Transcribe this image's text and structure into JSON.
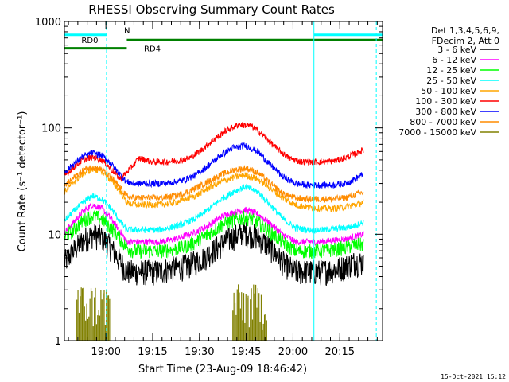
{
  "chart_data": {
    "type": "line",
    "title": "RHESSI Observing Summary Count Rates",
    "xlabel": "Start Time (23-Aug-09 18:46:42)",
    "ylabel": "Count Rate (s⁻¹ detector⁻¹)",
    "footer_timestamp": "15-Oct-2021 15:12",
    "x_unit": "minutes after 18:46:42",
    "xlim": [
      0,
      102
    ],
    "ylim": [
      1,
      1000
    ],
    "yscale": "log",
    "x_ticks": [
      {
        "value": 13.3,
        "label": "19:00"
      },
      {
        "value": 28.3,
        "label": "19:15"
      },
      {
        "value": 43.3,
        "label": "19:30"
      },
      {
        "value": 58.3,
        "label": "19:45"
      },
      {
        "value": 73.3,
        "label": "20:00"
      },
      {
        "value": 88.3,
        "label": "20:15"
      }
    ],
    "y_ticks": [
      {
        "value": 1,
        "label": "1"
      },
      {
        "value": 10,
        "label": "10"
      },
      {
        "value": 100,
        "label": "100"
      },
      {
        "value": 1000,
        "label": "1000"
      }
    ],
    "legend_header": [
      "Det 1,3,4,5,6,9,",
      "FDecim 2, Att 0"
    ],
    "legend_position": "right",
    "series": [
      {
        "name": "3 - 6 keV",
        "color": "#000000",
        "points": [
          [
            0,
            5.5
          ],
          [
            3,
            7
          ],
          [
            6,
            9
          ],
          [
            9,
            10
          ],
          [
            12,
            9.5
          ],
          [
            15,
            7.5
          ],
          [
            18,
            5.5
          ],
          [
            20,
            4.5
          ],
          [
            22,
            4.5
          ],
          [
            26,
            4.5
          ],
          [
            30,
            4.5
          ],
          [
            34,
            4.8
          ],
          [
            38,
            5
          ],
          [
            42,
            5.5
          ],
          [
            46,
            6.5
          ],
          [
            50,
            8
          ],
          [
            54,
            9.5
          ],
          [
            58,
            10.5
          ],
          [
            62,
            9.5
          ],
          [
            66,
            7.5
          ],
          [
            70,
            5.5
          ],
          [
            74,
            4.5
          ],
          [
            78,
            4.5
          ],
          [
            82,
            4.5
          ],
          [
            86,
            4.7
          ],
          [
            90,
            5
          ],
          [
            93,
            5.5
          ],
          [
            96,
            5.5
          ]
        ]
      },
      {
        "name": "6 - 12 keV",
        "color": "#ff00ff",
        "points": [
          [
            0,
            10.5
          ],
          [
            3,
            13
          ],
          [
            6,
            16.5
          ],
          [
            9,
            19
          ],
          [
            12,
            17.5
          ],
          [
            15,
            14
          ],
          [
            18,
            10.5
          ],
          [
            20,
            8.5
          ],
          [
            22,
            8.5
          ],
          [
            26,
            8.5
          ],
          [
            30,
            8.5
          ],
          [
            34,
            8.8
          ],
          [
            38,
            9.5
          ],
          [
            42,
            10.5
          ],
          [
            46,
            12
          ],
          [
            50,
            14.5
          ],
          [
            54,
            16
          ],
          [
            58,
            17
          ],
          [
            62,
            15.5
          ],
          [
            66,
            12.5
          ],
          [
            70,
            10
          ],
          [
            74,
            8.5
          ],
          [
            78,
            8.5
          ],
          [
            82,
            8.5
          ],
          [
            86,
            8.8
          ],
          [
            90,
            9
          ],
          [
            93,
            9.5
          ],
          [
            96,
            10
          ]
        ]
      },
      {
        "name": "12 - 25 keV",
        "color": "#00ff00",
        "points": [
          [
            0,
            9.5
          ],
          [
            3,
            11
          ],
          [
            6,
            13.5
          ],
          [
            9,
            15
          ],
          [
            12,
            14
          ],
          [
            15,
            11.5
          ],
          [
            18,
            9
          ],
          [
            20,
            7.5
          ],
          [
            22,
            7
          ],
          [
            26,
            7
          ],
          [
            30,
            7
          ],
          [
            34,
            7.2
          ],
          [
            38,
            7.5
          ],
          [
            42,
            8.5
          ],
          [
            46,
            10
          ],
          [
            50,
            12
          ],
          [
            54,
            13.5
          ],
          [
            58,
            14.5
          ],
          [
            62,
            13
          ],
          [
            66,
            10.5
          ],
          [
            70,
            8.5
          ],
          [
            74,
            7
          ],
          [
            78,
            7
          ],
          [
            82,
            7
          ],
          [
            86,
            7.2
          ],
          [
            90,
            7.5
          ],
          [
            93,
            8
          ],
          [
            96,
            8
          ]
        ]
      },
      {
        "name": "25 - 50 keV",
        "color": "#00ffff",
        "points": [
          [
            0,
            13.5
          ],
          [
            3,
            16.5
          ],
          [
            6,
            20
          ],
          [
            9,
            23
          ],
          [
            12,
            21.5
          ],
          [
            15,
            17.5
          ],
          [
            18,
            13
          ],
          [
            20,
            11
          ],
          [
            22,
            11
          ],
          [
            26,
            11
          ],
          [
            30,
            11
          ],
          [
            34,
            11.5
          ],
          [
            38,
            12.5
          ],
          [
            42,
            14
          ],
          [
            46,
            17
          ],
          [
            50,
            21
          ],
          [
            54,
            25
          ],
          [
            58,
            28
          ],
          [
            62,
            25
          ],
          [
            66,
            19
          ],
          [
            70,
            14
          ],
          [
            74,
            11.5
          ],
          [
            78,
            11
          ],
          [
            82,
            11
          ],
          [
            86,
            11.2
          ],
          [
            90,
            11.5
          ],
          [
            93,
            12
          ],
          [
            96,
            13
          ]
        ]
      },
      {
        "name": "50 - 100 keV",
        "color": "#ffa500",
        "points": [
          [
            0,
            25
          ],
          [
            3,
            31
          ],
          [
            6,
            37
          ],
          [
            9,
            41
          ],
          [
            12,
            39
          ],
          [
            15,
            32
          ],
          [
            18,
            25
          ],
          [
            20,
            20
          ],
          [
            22,
            19
          ],
          [
            26,
            19
          ],
          [
            30,
            19
          ],
          [
            34,
            19.5
          ],
          [
            38,
            21
          ],
          [
            42,
            23
          ],
          [
            46,
            27
          ],
          [
            50,
            31
          ],
          [
            54,
            34
          ],
          [
            58,
            36
          ],
          [
            62,
            33
          ],
          [
            66,
            27
          ],
          [
            70,
            22
          ],
          [
            74,
            19
          ],
          [
            78,
            18
          ],
          [
            82,
            17.5
          ],
          [
            86,
            17.5
          ],
          [
            90,
            18
          ],
          [
            93,
            19
          ],
          [
            96,
            20
          ]
        ]
      },
      {
        "name": "100 - 300 keV",
        "color": "#ff0000",
        "points": [
          [
            0,
            35
          ],
          [
            3,
            43
          ],
          [
            6,
            50
          ],
          [
            9,
            53
          ],
          [
            12,
            50
          ],
          [
            15,
            41
          ],
          [
            18,
            33
          ],
          [
            24,
            52
          ],
          [
            28,
            48
          ],
          [
            32,
            48
          ],
          [
            36,
            49
          ],
          [
            40,
            52
          ],
          [
            44,
            62
          ],
          [
            48,
            78
          ],
          [
            52,
            95
          ],
          [
            56,
            108
          ],
          [
            60,
            104
          ],
          [
            64,
            84
          ],
          [
            68,
            64
          ],
          [
            72,
            52
          ],
          [
            76,
            48
          ],
          [
            80,
            48
          ],
          [
            84,
            48
          ],
          [
            88,
            50
          ],
          [
            92,
            55
          ],
          [
            96,
            62
          ]
        ]
      },
      {
        "name": "300 - 800 keV",
        "color": "#0000ff",
        "points": [
          [
            0,
            38
          ],
          [
            3,
            46
          ],
          [
            6,
            54
          ],
          [
            9,
            58
          ],
          [
            12,
            55
          ],
          [
            15,
            46
          ],
          [
            18,
            36
          ],
          [
            20,
            31
          ],
          [
            22,
            30
          ],
          [
            26,
            30
          ],
          [
            30,
            30
          ],
          [
            34,
            30.5
          ],
          [
            38,
            32
          ],
          [
            42,
            36
          ],
          [
            46,
            44
          ],
          [
            50,
            55
          ],
          [
            54,
            65
          ],
          [
            58,
            68
          ],
          [
            62,
            60
          ],
          [
            66,
            45
          ],
          [
            70,
            35
          ],
          [
            74,
            30
          ],
          [
            78,
            29
          ],
          [
            82,
            29
          ],
          [
            86,
            29
          ],
          [
            90,
            30
          ],
          [
            93,
            33
          ],
          [
            96,
            37
          ]
        ]
      },
      {
        "name": "800 - 7000 keV",
        "color": "#ff8c00",
        "points": [
          [
            0,
            28
          ],
          [
            3,
            34
          ],
          [
            6,
            40
          ],
          [
            9,
            43
          ],
          [
            12,
            41
          ],
          [
            15,
            34
          ],
          [
            18,
            27
          ],
          [
            20,
            23
          ],
          [
            22,
            22
          ],
          [
            26,
            22
          ],
          [
            30,
            22
          ],
          [
            34,
            22.5
          ],
          [
            38,
            24
          ],
          [
            42,
            27
          ],
          [
            46,
            31
          ],
          [
            50,
            36
          ],
          [
            54,
            40
          ],
          [
            58,
            42
          ],
          [
            62,
            38
          ],
          [
            66,
            30
          ],
          [
            70,
            24
          ],
          [
            74,
            22
          ],
          [
            78,
            21.5
          ],
          [
            82,
            21.5
          ],
          [
            86,
            21.5
          ],
          [
            90,
            22
          ],
          [
            93,
            23.5
          ],
          [
            96,
            25
          ]
        ]
      },
      {
        "name": "7000 - 15000 keV",
        "color": "#808000",
        "points": [
          [
            4,
            1.1
          ],
          [
            4,
            2.0
          ],
          [
            6,
            2.4
          ],
          [
            8,
            3.2
          ],
          [
            10,
            3.5
          ],
          [
            12,
            2.6
          ],
          [
            14,
            2.0
          ],
          [
            14.5,
            1.1
          ],
          [
            54,
            1.1
          ],
          [
            54,
            2.4
          ],
          [
            56,
            2.0
          ],
          [
            58,
            2.4
          ],
          [
            60,
            2.0
          ],
          [
            62,
            2.4
          ],
          [
            64,
            2.0
          ],
          [
            65,
            1.1
          ]
        ]
      }
    ],
    "segments": [
      {
        "label": "N",
        "color": "#00ffff",
        "y": 750,
        "x": [
          0,
          13.5
        ]
      },
      {
        "label": "",
        "color": "#00ffff",
        "y": 750,
        "x": [
          80,
          102
        ]
      },
      {
        "label": "RD0",
        "color": "#008000",
        "y": 670,
        "x": [
          20,
          102
        ]
      },
      {
        "label": "RD4",
        "color": "#008000",
        "y": 560,
        "x": [
          0,
          20
        ]
      }
    ],
    "vertical_markers": [
      {
        "x": 13.5,
        "color": "#00ffff",
        "style": "dashed"
      },
      {
        "x": 80,
        "color": "#00ffff",
        "style": "solid"
      },
      {
        "x": 100,
        "color": "#00ffff",
        "style": "dashed"
      }
    ]
  }
}
